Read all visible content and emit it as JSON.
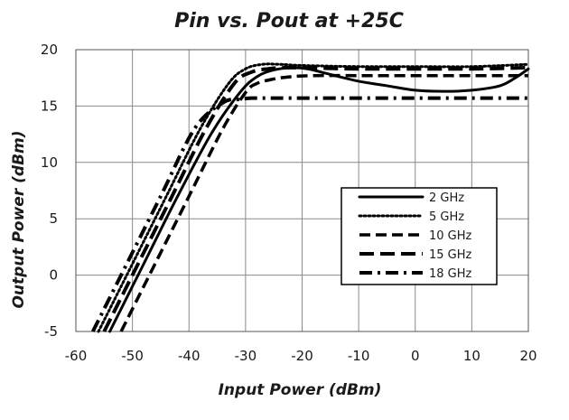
{
  "chart_data": {
    "type": "line",
    "title": "Pin vs. Pout at +25C",
    "xlabel": "Input Power (dBm)",
    "ylabel": "Output Power (dBm)",
    "xlim": [
      -60,
      20
    ],
    "ylim": [
      -5,
      20
    ],
    "xticks": [
      "-60",
      "-50",
      "-40",
      "-30",
      "-20",
      "-10",
      "0",
      "10",
      "20"
    ],
    "yticks": [
      "20",
      "15",
      "10",
      "5",
      "0",
      "-5"
    ],
    "grid": true,
    "legend_position": "center-right",
    "series": [
      {
        "name": "2 GHz",
        "color": "#000000",
        "style": "solid",
        "x": [
          -54,
          -48,
          -42,
          -36,
          -31,
          -28,
          -25,
          -22,
          -19,
          -15,
          -10,
          -5,
          0,
          5,
          10,
          15,
          18,
          20
        ],
        "y": [
          -5,
          1,
          7,
          12.6,
          16.2,
          17.6,
          18.2,
          18.4,
          18.3,
          17.8,
          17.2,
          16.8,
          16.4,
          16.3,
          16.4,
          16.8,
          17.6,
          18.3
        ]
      },
      {
        "name": "5 GHz",
        "color": "#000000",
        "style": "dotted",
        "x": [
          -56,
          -50,
          -44,
          -38,
          -33,
          -30,
          -27,
          -24,
          -20,
          -10,
          0,
          10,
          20
        ],
        "y": [
          -5,
          1,
          7,
          13,
          17,
          18.3,
          18.7,
          18.7,
          18.6,
          18.5,
          18.5,
          18.5,
          18.7
        ]
      },
      {
        "name": "10 GHz",
        "color": "#000000",
        "style": "dashed",
        "x": [
          -52,
          -46,
          -40,
          -34,
          -30,
          -28,
          -25,
          -22,
          -18,
          -10,
          0,
          10,
          20
        ],
        "y": [
          -5,
          1,
          7,
          13,
          16.2,
          17,
          17.4,
          17.6,
          17.7,
          17.7,
          17.7,
          17.7,
          17.7
        ]
      },
      {
        "name": "15 GHz",
        "color": "#000000",
        "style": "longdash",
        "x": [
          -55,
          -49,
          -43,
          -37,
          -32,
          -29,
          -26,
          -23,
          -20,
          -10,
          0,
          10,
          20
        ],
        "y": [
          -5,
          1,
          7,
          13,
          17,
          18,
          18.3,
          18.4,
          18.4,
          18.3,
          18.3,
          18.3,
          18.4
        ]
      },
      {
        "name": "18 GHz",
        "color": "#000000",
        "style": "dashdot",
        "x": [
          -57,
          -51,
          -45,
          -39,
          -34,
          -31,
          -29,
          -27,
          -20,
          -10,
          0,
          10,
          20
        ],
        "y": [
          -5,
          1,
          7,
          13,
          15.3,
          15.6,
          15.7,
          15.7,
          15.7,
          15.7,
          15.7,
          15.7,
          15.7
        ]
      }
    ]
  }
}
